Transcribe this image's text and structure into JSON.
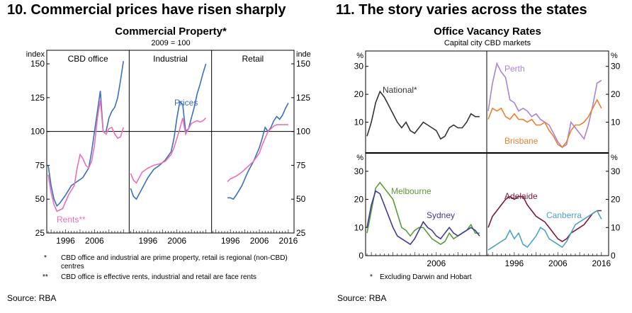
{
  "left": {
    "heading": "10. Commercial prices have risen sharply",
    "title": "Commercial Property*",
    "subtitle": "2009 = 100",
    "yunit_left": "index",
    "yunit_right": "inde",
    "notes": [
      {
        "mark": "*",
        "text": "CBD office and industrial are prime property, retail is regional (non-CBD) centres"
      },
      {
        "mark": "**",
        "text": "CBD office is effective rents, industrial and retail are face rents"
      }
    ],
    "source": "Source: RBA"
  },
  "right": {
    "heading": "11. The story varies across the states",
    "title": "Office Vacancy Rates",
    "subtitle": "Capital city CBD markets",
    "yunit": "%",
    "note": {
      "mark": "*",
      "text": "Excluding Darwin and Hobart"
    },
    "source": "Source: RBA"
  },
  "colors": {
    "prices": "#3a6fc4",
    "rents": "#ee6fb4",
    "national": "#333333",
    "perth": "#a883d6",
    "brisbane": "#f07f2c",
    "melbourne": "#5a9a3a",
    "sydney": "#3f3a9c",
    "adelaide": "#7b1a3c",
    "canberra": "#4aa3c8"
  },
  "chart_data": [
    {
      "type": "line",
      "title": "Commercial Property*",
      "subtitle": "2009 = 100",
      "ylabel": "index",
      "ylim": [
        25,
        160
      ],
      "yticks": [
        25,
        50,
        75,
        100,
        125,
        150
      ],
      "xlim": [
        1990,
        2017
      ],
      "xtick_labels": [
        "1996",
        "2006",
        "2016"
      ],
      "panels": [
        {
          "name": "CBD office",
          "series": [
            {
              "name": "Prices",
              "x": [
                1990,
                1991,
                1992,
                1993,
                1994,
                1996,
                1998,
                2000,
                2002,
                2004,
                2005,
                2006,
                2007,
                2008,
                2009,
                2010,
                2011,
                2012,
                2013,
                2014,
                2015,
                2016
              ],
              "values": [
                75,
                60,
                50,
                45,
                47,
                53,
                60,
                63,
                66,
                73,
                85,
                100,
                115,
                130,
                100,
                100,
                110,
                115,
                118,
                125,
                138,
                152
              ]
            },
            {
              "name": "Rents**",
              "x": [
                1990,
                1991,
                1992,
                1993,
                1995,
                1997,
                1999,
                2000,
                2001,
                2002,
                2003,
                2004,
                2005,
                2006,
                2007,
                2008,
                2009,
                2010,
                2011,
                2012,
                2013,
                2014,
                2015,
                2016
              ],
              "values": [
                68,
                55,
                46,
                41,
                43,
                53,
                60,
                73,
                83,
                80,
                75,
                73,
                78,
                90,
                110,
                123,
                100,
                98,
                102,
                103,
                98,
                95,
                96,
                103
              ]
            }
          ]
        },
        {
          "name": "Industrial",
          "series": [
            {
              "name": "Prices",
              "x": [
                1990,
                1991,
                1992,
                1994,
                1996,
                1998,
                2000,
                2002,
                2004,
                2005,
                2006,
                2007,
                2008,
                2009,
                2010,
                2011,
                2012,
                2013,
                2014,
                2015,
                2016
              ],
              "values": [
                58,
                52,
                50,
                58,
                66,
                72,
                75,
                79,
                85,
                95,
                110,
                122,
                120,
                100,
                102,
                110,
                118,
                128,
                135,
                143,
                150
              ]
            },
            {
              "name": "Rents",
              "x": [
                1990,
                1991,
                1992,
                1994,
                1996,
                1998,
                2000,
                2002,
                2004,
                2005,
                2006,
                2007,
                2008,
                2009,
                2010,
                2011,
                2012,
                2013,
                2014,
                2015,
                2016
              ],
              "values": [
                69,
                64,
                62,
                70,
                73,
                75,
                76,
                78,
                83,
                88,
                95,
                102,
                110,
                98,
                102,
                106,
                107,
                108,
                107,
                108,
                110
              ]
            }
          ]
        },
        {
          "name": "Retail",
          "series": [
            {
              "name": "Prices",
              "x": [
                1995,
                1996,
                1997,
                1998,
                2000,
                2002,
                2004,
                2006,
                2007,
                2008,
                2009,
                2010,
                2011,
                2012,
                2013,
                2014,
                2015,
                2016
              ],
              "values": [
                51,
                51,
                50,
                53,
                60,
                70,
                78,
                88,
                95,
                103,
                100,
                103,
                108,
                111,
                109,
                112,
                117,
                121
              ]
            },
            {
              "name": "Rents",
              "x": [
                1995,
                1996,
                1998,
                2000,
                2002,
                2004,
                2006,
                2007,
                2008,
                2009,
                2010,
                2011,
                2012,
                2013,
                2014,
                2015,
                2016
              ],
              "values": [
                63,
                65,
                67,
                70,
                74,
                78,
                84,
                90,
                95,
                100,
                102,
                104,
                105,
                105,
                105,
                105,
                105
              ]
            }
          ]
        }
      ]
    },
    {
      "type": "line",
      "title": "Office Vacancy Rates",
      "subtitle": "Capital city CBD markets",
      "ylabel": "%",
      "ylim": [
        0,
        35
      ],
      "yticks": [
        0,
        10,
        20,
        30
      ],
      "xlim": [
        1990,
        2017
      ],
      "xtick_labels": [
        "1996",
        "2006",
        "2016"
      ],
      "panels": [
        {
          "name": "National*",
          "series": [
            {
              "name": "National*",
              "x": [
                1990,
                1991,
                1992,
                1993,
                1994,
                1995,
                1996,
                1997,
                1998,
                1999,
                2000,
                2001,
                2002,
                2003,
                2004,
                2005,
                2006,
                2007,
                2008,
                2009,
                2010,
                2011,
                2012,
                2013,
                2014,
                2015,
                2016
              ],
              "values": [
                5,
                10,
                17,
                21,
                19,
                16,
                13,
                10,
                8,
                10,
                7,
                6,
                8,
                10,
                9,
                8,
                7,
                4,
                5,
                8,
                9,
                8,
                8,
                10,
                13,
                12,
                12
              ]
            }
          ]
        },
        {
          "name": "Perth / Brisbane",
          "series": [
            {
              "name": "Perth",
              "x": [
                1990,
                1991,
                1992,
                1993,
                1994,
                1995,
                1996,
                1997,
                1998,
                1999,
                2000,
                2001,
                2002,
                2003,
                2004,
                2005,
                2006,
                2007,
                2008,
                2009,
                2010,
                2011,
                2012,
                2013,
                2014,
                2015,
                2016
              ],
              "values": [
                14,
                24,
                31,
                28,
                26,
                18,
                17,
                14,
                15,
                14,
                12,
                13,
                11,
                10,
                9,
                6,
                3,
                1,
                2,
                10,
                8,
                6,
                4,
                9,
                16,
                24,
                25
              ]
            },
            {
              "name": "Brisbane",
              "x": [
                1990,
                1991,
                1992,
                1993,
                1994,
                1995,
                1996,
                1997,
                1998,
                1999,
                2000,
                2001,
                2002,
                2003,
                2004,
                2005,
                2006,
                2007,
                2008,
                2009,
                2010,
                2011,
                2012,
                2013,
                2014,
                2015,
                2016
              ],
              "values": [
                11,
                15,
                14,
                15,
                12,
                11,
                13,
                11,
                11,
                10,
                11,
                9,
                9,
                10,
                7,
                5,
                2,
                1,
                3,
                7,
                9,
                9,
                10,
                12,
                15,
                18,
                15
              ]
            }
          ]
        },
        {
          "name": "Melbourne / Sydney",
          "series": [
            {
              "name": "Melbourne",
              "x": [
                1990,
                1991,
                1992,
                1993,
                1994,
                1995,
                1996,
                1997,
                1998,
                1999,
                2000,
                2001,
                2002,
                2003,
                2004,
                2005,
                2006,
                2007,
                2008,
                2009,
                2010,
                2011,
                2012,
                2013,
                2014,
                2015,
                2016
              ],
              "values": [
                8,
                16,
                24,
                26,
                24,
                22,
                20,
                15,
                10,
                9,
                7,
                9,
                10,
                10,
                8,
                6,
                5,
                4,
                5,
                8,
                6,
                7,
                8,
                9,
                11,
                8,
                8
              ]
            },
            {
              "name": "Sydney",
              "x": [
                1990,
                1991,
                1992,
                1993,
                1994,
                1995,
                1996,
                1997,
                1998,
                1999,
                2000,
                2001,
                2002,
                2003,
                2004,
                2005,
                2006,
                2007,
                2008,
                2009,
                2010,
                2011,
                2012,
                2013,
                2014,
                2015,
                2016
              ],
              "values": [
                10,
                18,
                23,
                22,
                18,
                14,
                10,
                7,
                6,
                5,
                4,
                6,
                9,
                12,
                10,
                9,
                7,
                6,
                8,
                10,
                8,
                7,
                8,
                9,
                10,
                9,
                7
              ]
            }
          ]
        },
        {
          "name": "Adelaide / Canberra",
          "series": [
            {
              "name": "Adelaide",
              "x": [
                1990,
                1991,
                1992,
                1993,
                1994,
                1995,
                1996,
                1997,
                1998,
                1999,
                2000,
                2001,
                2002,
                2003,
                2004,
                2005,
                2006,
                2007,
                2008,
                2009,
                2010,
                2011,
                2012,
                2013,
                2014,
                2015,
                2016
              ],
              "values": [
                10,
                14,
                16,
                18,
                20,
                21,
                20,
                21,
                21,
                18,
                16,
                14,
                13,
                12,
                10,
                8,
                6,
                5,
                6,
                8,
                9,
                10,
                11,
                13,
                15,
                16,
                16
              ]
            },
            {
              "name": "Canberra",
              "x": [
                1990,
                1991,
                1992,
                1993,
                1994,
                1995,
                1996,
                1997,
                1998,
                1999,
                2000,
                2001,
                2002,
                2003,
                2004,
                2005,
                2006,
                2007,
                2008,
                2009,
                2010,
                2011,
                2012,
                2013,
                2014,
                2015,
                2016
              ],
              "values": [
                2,
                3,
                4,
                5,
                6,
                9,
                6,
                8,
                4,
                3,
                5,
                7,
                10,
                9,
                6,
                5,
                4,
                3,
                5,
                8,
                11,
                12,
                13,
                14,
                15,
                16,
                13
              ]
            }
          ]
        }
      ]
    }
  ]
}
